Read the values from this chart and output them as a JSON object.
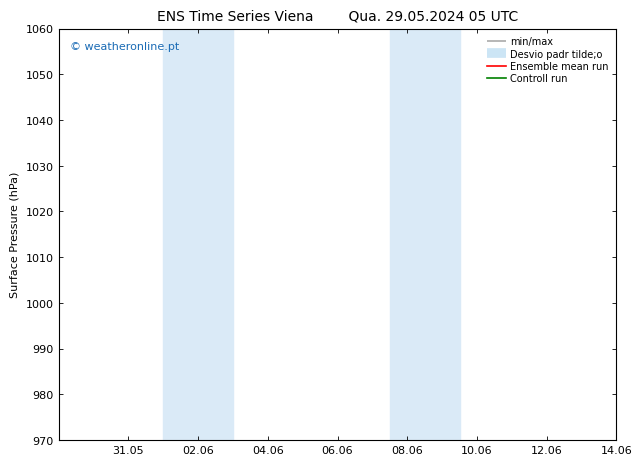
{
  "title_left": "ENS Time Series Viena",
  "title_right": "Qua. 29.05.2024 05 UTC",
  "ylabel": "Surface Pressure (hPa)",
  "ylim": [
    970,
    1060
  ],
  "yticks": [
    970,
    980,
    990,
    1000,
    1010,
    1020,
    1030,
    1040,
    1050,
    1060
  ],
  "xlim": [
    0,
    16
  ],
  "xtick_positions": [
    2,
    4,
    6,
    8,
    10,
    12,
    14,
    16
  ],
  "xtick_labels": [
    "31.05",
    "02.06",
    "04.06",
    "06.06",
    "08.06",
    "10.06",
    "12.06",
    "14.06"
  ],
  "shaded_bands": [
    {
      "start": 3.0,
      "end": 5.0
    },
    {
      "start": 9.5,
      "end": 11.5
    }
  ],
  "shaded_color": "#daeaf7",
  "copyright_text": "© weatheronline.pt",
  "copyright_color": "#1a6bb5",
  "legend_labels": [
    "min/max",
    "Desvio padr tilde;o",
    "Ensemble mean run",
    "Controll run"
  ],
  "legend_colors": [
    "#aaaaaa",
    "#cce5f5",
    "red",
    "green"
  ],
  "bg_color": "#ffffff",
  "spine_color": "#000000",
  "title_fontsize": 10,
  "label_fontsize": 8,
  "tick_fontsize": 8
}
